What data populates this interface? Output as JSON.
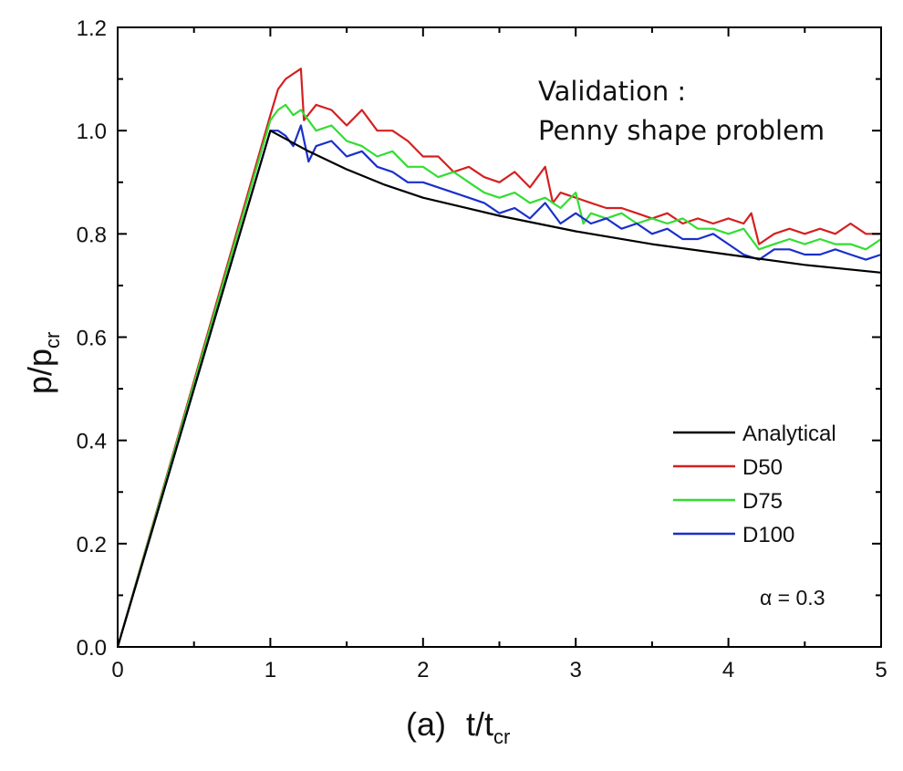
{
  "chart_data": {
    "type": "line",
    "title": "",
    "xlabel": {
      "prefix": "(a)",
      "main": "t/t",
      "sub": "cr"
    },
    "ylabel": {
      "main": "p/p",
      "sub": "cr"
    },
    "xlim": [
      0,
      5
    ],
    "ylim": [
      0,
      1.2
    ],
    "xticks": [
      "0",
      "1",
      "2",
      "3",
      "4",
      "5"
    ],
    "yticks": [
      "0.0",
      "0.2",
      "0.4",
      "0.6",
      "0.8",
      "1.0",
      "1.2"
    ],
    "grid": false,
    "legend_position": "bottom-right",
    "annotations": {
      "validation_line1": "Validation :",
      "validation_line2": "Penny shape problem",
      "alpha": "α = 0.3"
    },
    "series": [
      {
        "name": "Analytical",
        "color": "#000000",
        "x": [
          0,
          1.0,
          1.25,
          1.5,
          1.75,
          2.0,
          2.5,
          3.0,
          3.5,
          4.0,
          4.5,
          5.0
        ],
        "y": [
          0,
          1.0,
          0.96,
          0.925,
          0.895,
          0.87,
          0.835,
          0.805,
          0.78,
          0.76,
          0.74,
          0.725
        ]
      },
      {
        "name": "D50",
        "color": "#d42020",
        "x": [
          0,
          1.0,
          1.05,
          1.1,
          1.15,
          1.2,
          1.22,
          1.3,
          1.4,
          1.5,
          1.6,
          1.7,
          1.8,
          1.9,
          2.0,
          2.1,
          2.2,
          2.3,
          2.4,
          2.5,
          2.6,
          2.7,
          2.8,
          2.85,
          2.9,
          3.0,
          3.1,
          3.2,
          3.3,
          3.4,
          3.5,
          3.6,
          3.7,
          3.8,
          3.9,
          4.0,
          4.1,
          4.15,
          4.2,
          4.3,
          4.4,
          4.5,
          4.6,
          4.7,
          4.8,
          4.9,
          5.0
        ],
        "y": [
          0,
          1.03,
          1.08,
          1.1,
          1.11,
          1.12,
          1.02,
          1.05,
          1.04,
          1.01,
          1.04,
          1.0,
          1.0,
          0.98,
          0.95,
          0.95,
          0.92,
          0.93,
          0.91,
          0.9,
          0.92,
          0.89,
          0.93,
          0.86,
          0.88,
          0.87,
          0.86,
          0.85,
          0.85,
          0.84,
          0.83,
          0.84,
          0.82,
          0.83,
          0.82,
          0.83,
          0.82,
          0.84,
          0.78,
          0.8,
          0.81,
          0.8,
          0.81,
          0.8,
          0.82,
          0.8,
          0.8
        ]
      },
      {
        "name": "D75",
        "color": "#33dd33",
        "x": [
          0,
          1.0,
          1.05,
          1.1,
          1.15,
          1.2,
          1.3,
          1.4,
          1.5,
          1.6,
          1.7,
          1.8,
          1.9,
          2.0,
          2.1,
          2.2,
          2.3,
          2.4,
          2.5,
          2.6,
          2.7,
          2.8,
          2.9,
          3.0,
          3.05,
          3.1,
          3.2,
          3.3,
          3.4,
          3.5,
          3.6,
          3.7,
          3.8,
          3.9,
          4.0,
          4.1,
          4.15,
          4.2,
          4.3,
          4.4,
          4.5,
          4.6,
          4.7,
          4.8,
          4.9,
          5.0
        ],
        "y": [
          0,
          1.02,
          1.04,
          1.05,
          1.03,
          1.04,
          1.0,
          1.01,
          0.98,
          0.97,
          0.95,
          0.96,
          0.93,
          0.93,
          0.91,
          0.92,
          0.9,
          0.88,
          0.87,
          0.88,
          0.86,
          0.87,
          0.85,
          0.88,
          0.82,
          0.84,
          0.83,
          0.84,
          0.82,
          0.83,
          0.82,
          0.83,
          0.81,
          0.81,
          0.8,
          0.81,
          0.79,
          0.77,
          0.78,
          0.79,
          0.78,
          0.79,
          0.78,
          0.78,
          0.77,
          0.79
        ]
      },
      {
        "name": "D100",
        "color": "#1a2fcc",
        "x": [
          0,
          1.0,
          1.05,
          1.1,
          1.15,
          1.2,
          1.25,
          1.3,
          1.4,
          1.5,
          1.6,
          1.7,
          1.8,
          1.9,
          2.0,
          2.1,
          2.2,
          2.3,
          2.4,
          2.5,
          2.6,
          2.7,
          2.8,
          2.9,
          3.0,
          3.1,
          3.2,
          3.3,
          3.4,
          3.5,
          3.6,
          3.7,
          3.8,
          3.9,
          4.0,
          4.1,
          4.2,
          4.3,
          4.4,
          4.5,
          4.6,
          4.7,
          4.8,
          4.9,
          5.0
        ],
        "y": [
          0,
          1.0,
          1.0,
          0.99,
          0.97,
          1.01,
          0.94,
          0.97,
          0.98,
          0.95,
          0.96,
          0.93,
          0.92,
          0.9,
          0.9,
          0.89,
          0.88,
          0.87,
          0.86,
          0.84,
          0.85,
          0.83,
          0.86,
          0.82,
          0.84,
          0.82,
          0.83,
          0.81,
          0.82,
          0.8,
          0.81,
          0.79,
          0.79,
          0.8,
          0.78,
          0.76,
          0.75,
          0.77,
          0.77,
          0.76,
          0.76,
          0.77,
          0.76,
          0.75,
          0.76
        ]
      }
    ]
  }
}
